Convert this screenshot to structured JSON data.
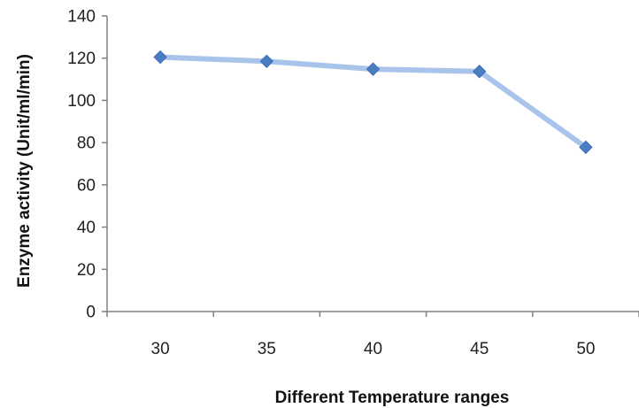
{
  "chart_data": {
    "type": "line",
    "title": "",
    "xlabel": "Different Temperature ranges",
    "ylabel": "Enzyme activity (Unit/ml/min)",
    "categories": [
      "30",
      "35",
      "40",
      "45",
      "50"
    ],
    "series": [
      {
        "values": [
          120.5,
          118.5,
          114.8,
          113.7,
          77.8
        ]
      }
    ],
    "ylim": [
      0,
      140
    ],
    "yticks": [
      0,
      20,
      40,
      60,
      80,
      100,
      120,
      140
    ],
    "grid": false,
    "legend": "none",
    "colors": {
      "line": "#a9c4ea",
      "marker": "#4a7ec2",
      "axis": "#808080"
    }
  }
}
